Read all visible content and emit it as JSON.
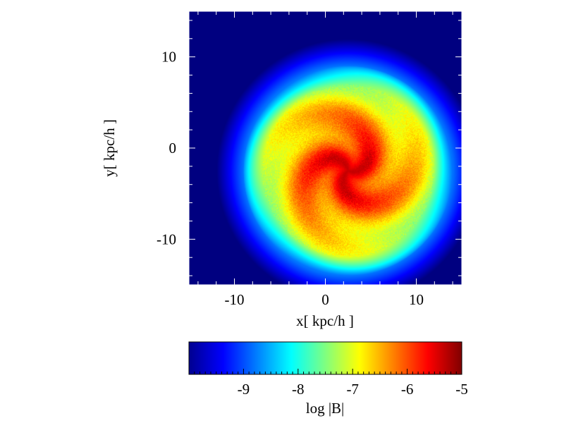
{
  "chart_data": {
    "type": "heatmap",
    "title": "",
    "xlabel": "x[ kpc/h ]",
    "ylabel": "y[ kpc/h ]",
    "xlim": [
      -15,
      15
    ],
    "ylim": [
      -15,
      15
    ],
    "xticks": [
      -10,
      0,
      10
    ],
    "yticks": [
      -10,
      0,
      10
    ],
    "xtick_labels": [
      "-10",
      "0",
      "10"
    ],
    "ytick_labels": [
      "-10",
      "0",
      "10"
    ],
    "colormap": "jet",
    "colorbar": {
      "label": "log |B|",
      "range": [
        -10,
        -5
      ],
      "ticks": [
        -9,
        -8,
        -7,
        -6,
        -5
      ],
      "tick_labels": [
        "-9",
        "-8",
        "-7",
        "-6",
        "-5"
      ],
      "placement": "bottom"
    },
    "field": {
      "description_center": [
        2.5,
        -2.5
      ],
      "background_log_B": -10,
      "peak_log_B": -5.3,
      "disk_edge_radius": 11.5,
      "spiral_arms": 3
    },
    "grid": false,
    "legend": "none"
  }
}
